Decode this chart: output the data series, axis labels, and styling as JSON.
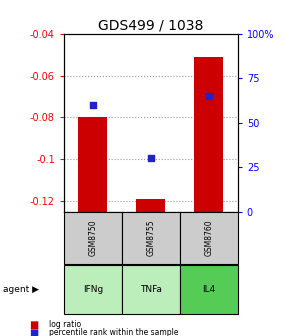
{
  "title": "GDS499 / 1038",
  "samples": [
    "GSM8750",
    "GSM8755",
    "GSM8760"
  ],
  "agents": [
    "IFNg",
    "TNFa",
    "IL4"
  ],
  "log_ratio": [
    -0.08,
    -0.119,
    -0.051
  ],
  "percentile": [
    60,
    30,
    65
  ],
  "ylim_left": [
    -0.125,
    -0.04
  ],
  "ylim_right": [
    0,
    100
  ],
  "yticks_left": [
    -0.12,
    -0.1,
    -0.08,
    -0.06,
    -0.04
  ],
  "yticks_right": [
    0,
    25,
    50,
    75,
    100
  ],
  "ytick_labels_right": [
    "0",
    "25",
    "50",
    "75",
    "100%"
  ],
  "bar_color": "#cc0000",
  "dot_color": "#2222cc",
  "agent_colors": [
    "#bbeebb",
    "#bbeebb",
    "#55cc55"
  ],
  "sample_bg_color": "#cccccc",
  "grid_color": "#999999",
  "title_fontsize": 10,
  "tick_fontsize": 7,
  "bar_width": 0.5,
  "dot_size": 16
}
